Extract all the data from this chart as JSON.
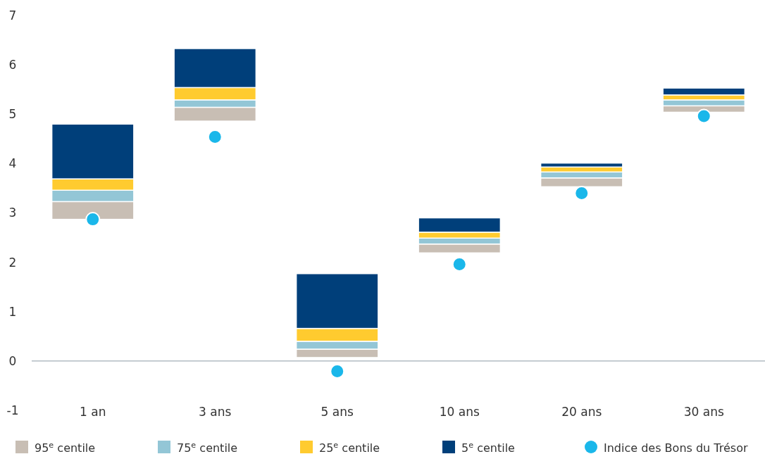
{
  "chart_data": {
    "type": "bar",
    "categories": [
      "1 an",
      "3 ans",
      "5 ans",
      "10 ans",
      "20 ans",
      "30 ans"
    ],
    "series": [
      {
        "name": "95$^{e}$ centile",
        "color": "#c8beb4",
        "base": [
          2.87,
          4.86,
          0.07,
          2.19,
          3.53,
          5.04
        ],
        "values": [
          0.36,
          0.28,
          0.17,
          0.18,
          0.18,
          0.13
        ]
      },
      {
        "name": "75$^{e}$ centile",
        "color": "#93c6d6",
        "base": [
          3.23,
          5.14,
          0.24,
          2.37,
          3.71,
          5.17
        ],
        "values": [
          0.23,
          0.15,
          0.16,
          0.12,
          0.12,
          0.12
        ]
      },
      {
        "name": "25$^{e}$ centile",
        "color": "#ffcb2f",
        "base": [
          3.46,
          5.29,
          0.4,
          2.49,
          3.83,
          5.29
        ],
        "values": [
          0.23,
          0.25,
          0.26,
          0.12,
          0.1,
          0.1
        ]
      },
      {
        "name": "5$^{e}$ centile",
        "color": "#003f7a",
        "base": [
          3.69,
          5.54,
          0.66,
          2.61,
          3.93,
          5.39
        ],
        "values": [
          1.11,
          0.79,
          1.11,
          0.29,
          0.08,
          0.14
        ]
      },
      {
        "name": "Indice des Bons du Trésor",
        "type": "scatter",
        "color": "#1ab7ea",
        "x": [
          "1 an",
          "3 ans",
          "5 ans",
          "10 ans",
          "20 ans",
          "30 ans"
        ],
        "values": [
          2.87,
          4.54,
          -0.21,
          1.96,
          3.4,
          4.96
        ]
      }
    ],
    "ylim": [
      -1,
      7
    ],
    "yticks": [
      -1,
      0,
      1,
      2,
      3,
      4,
      5,
      6,
      7
    ],
    "legend": "bottom",
    "marker": "circle"
  }
}
